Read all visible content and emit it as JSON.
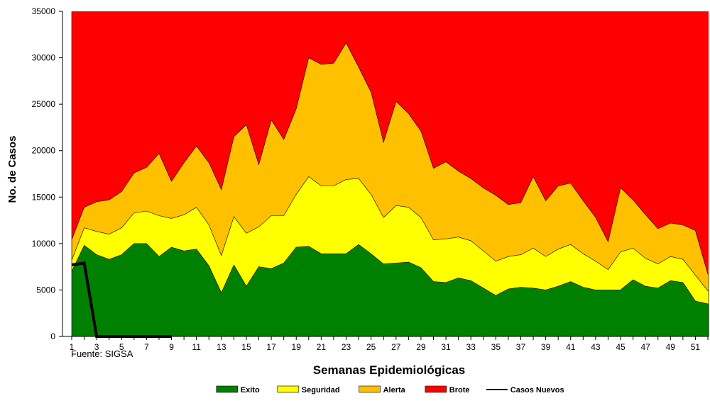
{
  "chart_data": {
    "type": "area",
    "title": "",
    "xlabel": "Semanas Epidemiológicas",
    "ylabel": "No. de Casos",
    "source_note": "Fuente: SIGSA",
    "ylim": [
      0,
      35000
    ],
    "yticks": [
      0,
      5000,
      10000,
      15000,
      20000,
      25000,
      30000,
      35000
    ],
    "x": [
      1,
      2,
      3,
      4,
      5,
      6,
      7,
      8,
      9,
      10,
      11,
      12,
      13,
      14,
      15,
      16,
      17,
      18,
      19,
      20,
      21,
      22,
      23,
      24,
      25,
      26,
      27,
      28,
      29,
      30,
      31,
      32,
      33,
      34,
      35,
      36,
      37,
      38,
      39,
      40,
      41,
      42,
      43,
      44,
      45,
      46,
      47,
      48,
      49,
      50,
      51,
      52
    ],
    "xtick_labels": [
      "1",
      "3",
      "5",
      "7",
      "9",
      "11",
      "13",
      "15",
      "17",
      "19",
      "21",
      "23",
      "25",
      "27",
      "29",
      "31",
      "33",
      "35",
      "37",
      "39",
      "41",
      "43",
      "45",
      "47",
      "49",
      "51"
    ],
    "stacking": "cumulative thresholds (each series value is the upper bound of its band)",
    "series": [
      {
        "name": "Exito",
        "color": "#008000",
        "values": [
          7000,
          9800,
          8800,
          8300,
          8800,
          10000,
          10000,
          8600,
          9600,
          9200,
          9400,
          7600,
          4700,
          7700,
          5400,
          7500,
          7300,
          7900,
          9600,
          9700,
          8900,
          8900,
          8900,
          9900,
          8900,
          7800,
          7900,
          8000,
          7400,
          5900,
          5800,
          6300,
          6000,
          5200,
          4400,
          5100,
          5300,
          5200,
          5000,
          5400,
          5900,
          5300,
          5000,
          5000,
          5000,
          6100,
          5400,
          5200,
          6000,
          5800,
          3800,
          3500
        ]
      },
      {
        "name": "Seguridad",
        "color": "#ffff00",
        "values": [
          8200,
          11700,
          11300,
          11000,
          11700,
          13300,
          13500,
          13000,
          12700,
          13100,
          13900,
          12000,
          8700,
          12900,
          11100,
          11800,
          13000,
          13000,
          15300,
          17200,
          16200,
          16200,
          16900,
          17000,
          15300,
          12800,
          14100,
          13900,
          12800,
          10400,
          10500,
          10700,
          10300,
          9200,
          8100,
          8600,
          8800,
          9500,
          8600,
          9400,
          9900,
          8900,
          8100,
          7200,
          9100,
          9500,
          8400,
          7800,
          8600,
          8300,
          6600,
          4900
        ]
      },
      {
        "name": "Alerta",
        "color": "#ffc000",
        "values": [
          10400,
          13900,
          14500,
          14700,
          15600,
          17600,
          18200,
          19700,
          16700,
          18700,
          20500,
          18700,
          15800,
          21500,
          22800,
          18500,
          23300,
          21200,
          24500,
          30000,
          29300,
          29400,
          31600,
          29000,
          26300,
          20900,
          25300,
          24000,
          22100,
          18100,
          18800,
          17800,
          17000,
          16000,
          15200,
          14200,
          14400,
          17200,
          14600,
          16200,
          16500,
          14600,
          12800,
          10200,
          16000,
          14700,
          13100,
          11600,
          12200,
          12000,
          11400,
          6700
        ]
      },
      {
        "name": "Brote",
        "color": "#ff0000",
        "values": [
          35000,
          35000,
          35000,
          35000,
          35000,
          35000,
          35000,
          35000,
          35000,
          35000,
          35000,
          35000,
          35000,
          35000,
          35000,
          35000,
          35000,
          35000,
          35000,
          35000,
          35000,
          35000,
          35000,
          35000,
          35000,
          35000,
          35000,
          35000,
          35000,
          35000,
          35000,
          35000,
          35000,
          35000,
          35000,
          35000,
          35000,
          35000,
          35000,
          35000,
          35000,
          35000,
          35000,
          35000,
          35000,
          35000,
          35000,
          35000,
          35000,
          35000,
          35000,
          35000
        ]
      },
      {
        "name": "Casos Nuevos",
        "color": "#000000",
        "kind": "line",
        "x": [
          1,
          2,
          3,
          4,
          5,
          6,
          7,
          8,
          9
        ],
        "values": [
          7700,
          7900,
          0,
          0,
          0,
          0,
          0,
          0,
          0
        ]
      }
    ],
    "legend_position": "bottom",
    "grid": false
  }
}
